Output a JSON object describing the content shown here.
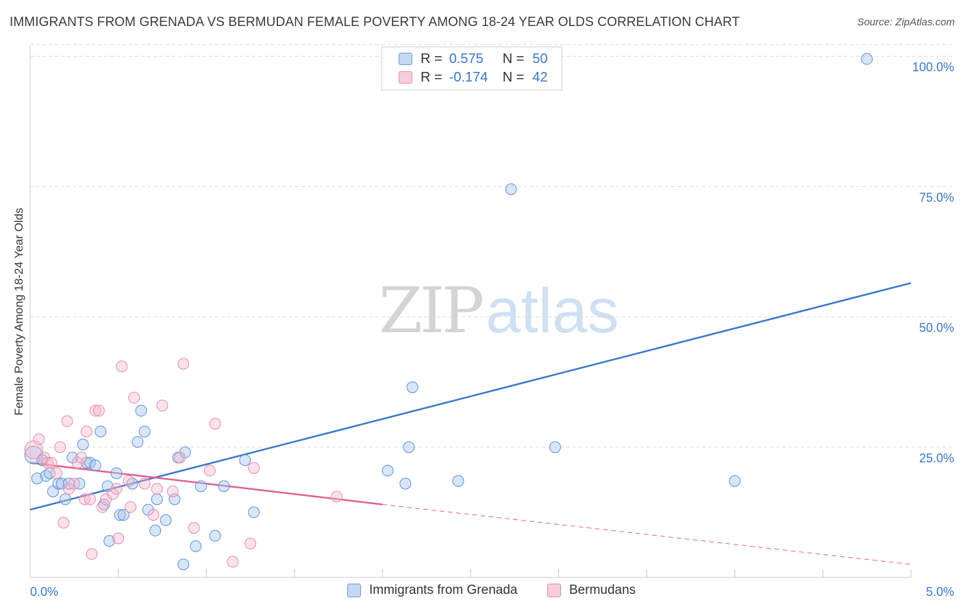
{
  "title": "IMMIGRANTS FROM GRENADA VS BERMUDAN FEMALE POVERTY AMONG 18-24 YEAR OLDS CORRELATION CHART",
  "source": "Source: ZipAtlas.com",
  "watermark": {
    "zip": "ZIP",
    "atlas": "atlas"
  },
  "colors": {
    "blue": "#3a78c8",
    "blue_fill": "#a9c8f0",
    "pink": "#e0608e",
    "pink_fill": "#f5b6cb",
    "grid": "#dcdcdc"
  },
  "legend": {
    "r_label": "R =",
    "n_label": "N =",
    "rows": [
      {
        "r": "0.575",
        "n": "50"
      },
      {
        "r": "-0.174",
        "n": "42"
      }
    ]
  },
  "chart_data": {
    "type": "scatter",
    "title": "IMMIGRANTS FROM GRENADA VS BERMUDAN FEMALE POVERTY AMONG 18-24 YEAR OLDS CORRELATION CHART",
    "xlabel": "",
    "ylabel": "Female Poverty Among 18-24 Year Olds",
    "xlim": [
      0,
      5
    ],
    "ylim": [
      0,
      102
    ],
    "x_tick_labels": [
      "0.0%",
      "5.0%"
    ],
    "y_ticks": [
      25,
      50,
      75,
      100
    ],
    "y_tick_labels": [
      "25.0%",
      "50.0%",
      "75.0%",
      "100.0%"
    ],
    "grid": true,
    "legend_position": "top-center",
    "series": [
      {
        "name": "Immigrants from Grenada",
        "color": "#3a78c8",
        "points": [
          [
            0.02,
            23.5
          ],
          [
            0.04,
            19.0
          ],
          [
            0.07,
            22.5
          ],
          [
            0.09,
            19.5
          ],
          [
            0.11,
            20.0
          ],
          [
            0.13,
            16.5
          ],
          [
            0.16,
            18.0
          ],
          [
            0.18,
            18.0
          ],
          [
            0.2,
            15.0
          ],
          [
            0.22,
            18.0
          ],
          [
            0.24,
            23.0
          ],
          [
            0.28,
            18.0
          ],
          [
            0.3,
            25.5
          ],
          [
            0.32,
            22.0
          ],
          [
            0.34,
            22.0
          ],
          [
            0.37,
            21.5
          ],
          [
            0.4,
            28.0
          ],
          [
            0.42,
            14.0
          ],
          [
            0.44,
            17.5
          ],
          [
            0.45,
            7.0
          ],
          [
            0.49,
            20.0
          ],
          [
            0.51,
            12.0
          ],
          [
            0.53,
            12.0
          ],
          [
            0.58,
            18.0
          ],
          [
            0.61,
            26.0
          ],
          [
            0.63,
            32.0
          ],
          [
            0.65,
            28.0
          ],
          [
            0.67,
            13.0
          ],
          [
            0.71,
            9.0
          ],
          [
            0.72,
            15.0
          ],
          [
            0.77,
            11.0
          ],
          [
            0.82,
            15.0
          ],
          [
            0.84,
            23.0
          ],
          [
            0.88,
            24.0
          ],
          [
            0.87,
            2.5
          ],
          [
            0.94,
            6.0
          ],
          [
            0.97,
            17.5
          ],
          [
            1.05,
            8.0
          ],
          [
            1.1,
            17.5
          ],
          [
            1.22,
            22.5
          ],
          [
            1.27,
            12.5
          ],
          [
            2.03,
            20.5
          ],
          [
            2.13,
            18.0
          ],
          [
            2.15,
            25.0
          ],
          [
            2.17,
            36.5
          ],
          [
            2.43,
            18.5
          ],
          [
            2.73,
            74.5
          ],
          [
            2.98,
            25.0
          ],
          [
            4.0,
            18.5
          ],
          [
            4.75,
            99.5
          ]
        ],
        "trend": {
          "x": [
            0,
            5
          ],
          "y": [
            13.0,
            56.5
          ],
          "style": "solid"
        }
      },
      {
        "name": "Bermudans",
        "color": "#e0608e",
        "points": [
          [
            0.02,
            24.5
          ],
          [
            0.05,
            26.5
          ],
          [
            0.08,
            23.0
          ],
          [
            0.1,
            22.0
          ],
          [
            0.12,
            22.0
          ],
          [
            0.15,
            20.0
          ],
          [
            0.17,
            25.0
          ],
          [
            0.19,
            10.5
          ],
          [
            0.21,
            30.0
          ],
          [
            0.22,
            17.0
          ],
          [
            0.25,
            18.0
          ],
          [
            0.27,
            22.0
          ],
          [
            0.29,
            23.0
          ],
          [
            0.31,
            15.0
          ],
          [
            0.32,
            28.0
          ],
          [
            0.34,
            15.0
          ],
          [
            0.35,
            4.5
          ],
          [
            0.37,
            32.0
          ],
          [
            0.39,
            32.0
          ],
          [
            0.41,
            13.5
          ],
          [
            0.43,
            15.0
          ],
          [
            0.47,
            16.0
          ],
          [
            0.49,
            17.0
          ],
          [
            0.5,
            7.5
          ],
          [
            0.52,
            40.5
          ],
          [
            0.56,
            18.5
          ],
          [
            0.57,
            13.5
          ],
          [
            0.59,
            34.5
          ],
          [
            0.65,
            18.0
          ],
          [
            0.7,
            12.0
          ],
          [
            0.72,
            17.0
          ],
          [
            0.75,
            33.0
          ],
          [
            0.81,
            16.5
          ],
          [
            0.85,
            23.0
          ],
          [
            0.87,
            41.0
          ],
          [
            0.93,
            9.5
          ],
          [
            1.02,
            20.5
          ],
          [
            1.05,
            29.5
          ],
          [
            1.15,
            3.0
          ],
          [
            1.25,
            6.5
          ],
          [
            1.27,
            21.0
          ],
          [
            1.74,
            15.5
          ]
        ],
        "trend": {
          "x": [
            0,
            2.0
          ],
          "y": [
            22.0,
            14.0
          ],
          "style": "solid"
        },
        "trend_extension": {
          "x": [
            2.0,
            5
          ],
          "y": [
            14.0,
            2.5
          ],
          "style": "dashed"
        }
      }
    ]
  }
}
